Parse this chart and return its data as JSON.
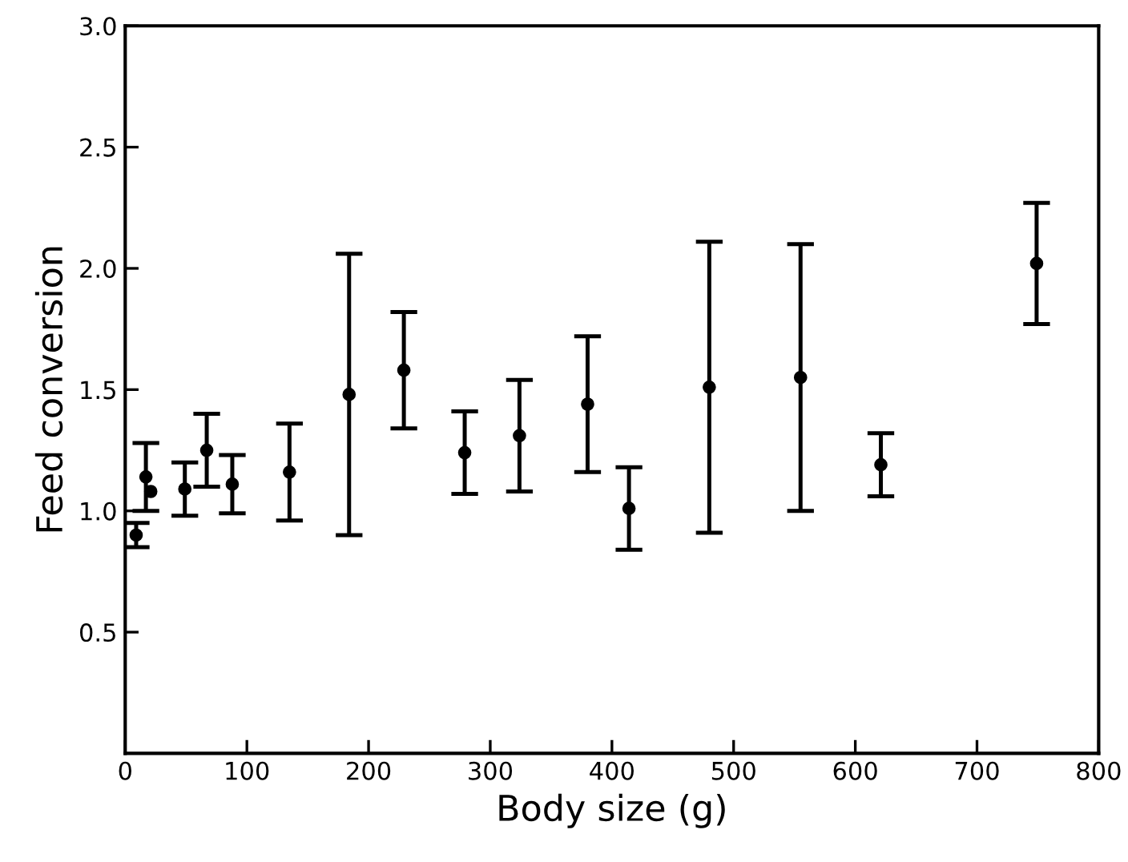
{
  "chart_data": {
    "type": "scatter",
    "xlabel": "Body size (g)",
    "ylabel": "Feed conversion",
    "x": [
      9,
      17,
      21,
      49,
      67,
      88,
      135,
      184,
      229,
      279,
      324,
      380,
      414,
      480,
      555,
      621,
      749
    ],
    "values": [
      0.9,
      1.14,
      1.08,
      1.09,
      1.25,
      1.11,
      1.16,
      1.48,
      1.58,
      1.24,
      1.31,
      1.44,
      1.01,
      1.51,
      1.55,
      1.19,
      2.02
    ],
    "errors": [
      0.05,
      0.14,
      null,
      0.11,
      0.15,
      0.12,
      0.2,
      0.58,
      0.24,
      0.17,
      0.23,
      0.28,
      0.17,
      0.6,
      0.55,
      0.13,
      0.25
    ],
    "color": "#000000",
    "marker": "circle",
    "xlim": [
      0,
      800
    ],
    "xticks": [
      0,
      100,
      200,
      300,
      400,
      500,
      600,
      700,
      800
    ],
    "ylim": [
      0,
      3.0
    ],
    "yticks": [
      {
        "value": 0.5,
        "label": "0.5"
      },
      {
        "value": 1.0,
        "label": "1.0"
      },
      {
        "value": 1.5,
        "label": "1.5"
      },
      {
        "value": 2.0,
        "label": "2.0"
      },
      {
        "value": 2.5,
        "label": "2.5"
      },
      {
        "value": 3.0,
        "label": "3.0"
      }
    ],
    "grid": false,
    "legend": false
  }
}
